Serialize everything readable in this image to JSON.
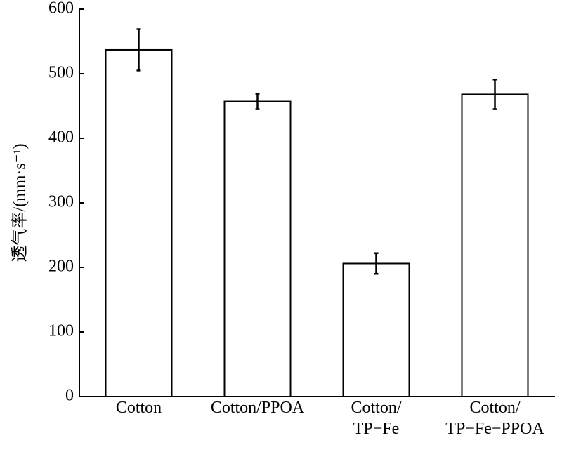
{
  "chart_data": {
    "type": "bar",
    "ylabel": "透气率/(mm·s⁻¹)",
    "categories": [
      "Cotton",
      "Cotton/PPOA",
      "Cotton/\nTP−Fe",
      "Cotton/\nTP−Fe−PPOA"
    ],
    "values": [
      537,
      457,
      206,
      468
    ],
    "errors": [
      32,
      12,
      16,
      23
    ],
    "color": "#ffffff",
    "ylim": [
      0,
      600
    ],
    "yticks": [
      0,
      100,
      200,
      300,
      400,
      500,
      600
    ]
  }
}
